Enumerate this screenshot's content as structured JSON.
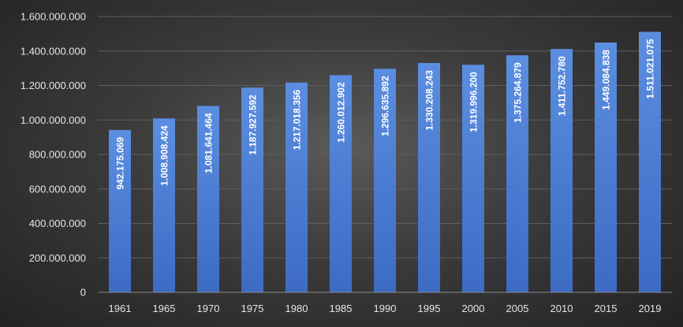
{
  "chart_data": {
    "type": "bar",
    "categories": [
      "1961",
      "1965",
      "1970",
      "1975",
      "1980",
      "1985",
      "1990",
      "1995",
      "2000",
      "2005",
      "2010",
      "2015",
      "2019"
    ],
    "values": [
      942175069,
      1008908424,
      1081641464,
      1187927592,
      1217018356,
      1260012902,
      1296635892,
      1330208243,
      1319996200,
      1375264879,
      1411752780,
      1449084838,
      1511021075
    ],
    "data_labels": [
      "942.175.069",
      "1.008.908.424",
      "1.081.641.464",
      "1.187.927.592",
      "1.217.018.356",
      "1.260.012.902",
      "1.296.635.892",
      "1.330.208.243",
      "1.319.996.200",
      "1.375.264.879",
      "1.411.752.780",
      "1.449.084.838",
      "1.511.021.075"
    ],
    "y_ticks": [
      0,
      200000000,
      400000000,
      600000000,
      800000000,
      1000000000,
      1200000000,
      1400000000,
      1600000000
    ],
    "y_tick_labels": [
      "0",
      "200.000.000",
      "400.000.000",
      "600.000.000",
      "800.000.000",
      "1.000.000.000",
      "1.200.000.000",
      "1.400.000.000",
      "1.600.000.000"
    ],
    "ylim": [
      0,
      1600000000
    ],
    "title": "",
    "xlabel": "",
    "ylabel": "",
    "grid": true,
    "legend": "none",
    "colors": {
      "bar_top": "#5b8ee0",
      "bar_bottom": "#3d6bc4",
      "grid": "#5e5e5e",
      "axis": "#8a8a8a",
      "tick_text": "#e6e6e6",
      "data_label_text": "#ffffff"
    }
  }
}
